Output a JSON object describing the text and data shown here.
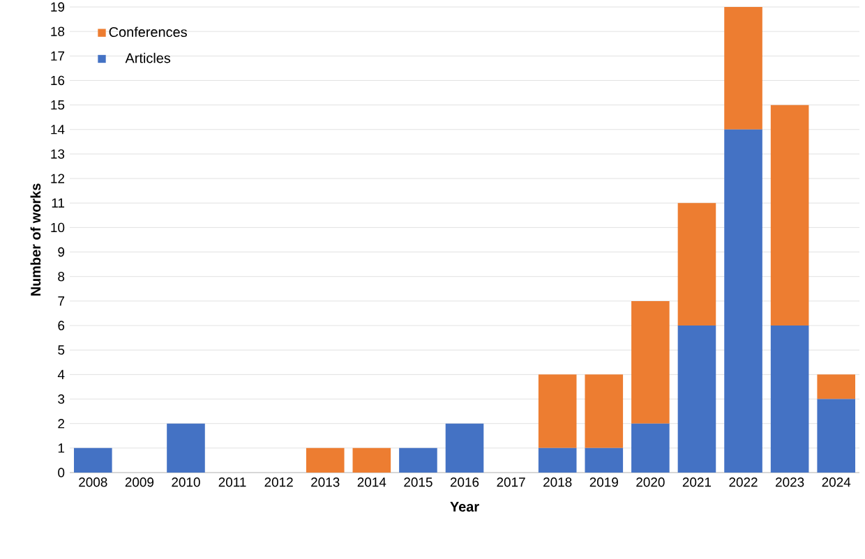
{
  "chart_data": {
    "type": "bar",
    "stacked": true,
    "xlabel": "Year",
    "ylabel": "Number of works",
    "categories": [
      "2008",
      "2009",
      "2010",
      "2011",
      "2012",
      "2013",
      "2014",
      "2015",
      "2016",
      "2017",
      "2018",
      "2019",
      "2020",
      "2021",
      "2022",
      "2023",
      "2024"
    ],
    "series": [
      {
        "name": "Articles",
        "color": "#4472c4",
        "values": [
          1,
          0,
          2,
          0,
          0,
          0,
          0,
          1,
          2,
          0,
          1,
          1,
          2,
          6,
          14,
          6,
          3
        ]
      },
      {
        "name": "Conferences",
        "color": "#ed7d31",
        "values": [
          0,
          0,
          0,
          0,
          0,
          1,
          1,
          0,
          0,
          0,
          3,
          3,
          5,
          5,
          5,
          9,
          1
        ]
      }
    ],
    "ylim": [
      0,
      19
    ],
    "yticks": [
      0,
      1,
      2,
      3,
      4,
      5,
      6,
      7,
      8,
      9,
      10,
      11,
      12,
      13,
      14,
      15,
      16,
      17,
      18,
      19
    ],
    "grid": "y",
    "legend": "top left"
  }
}
